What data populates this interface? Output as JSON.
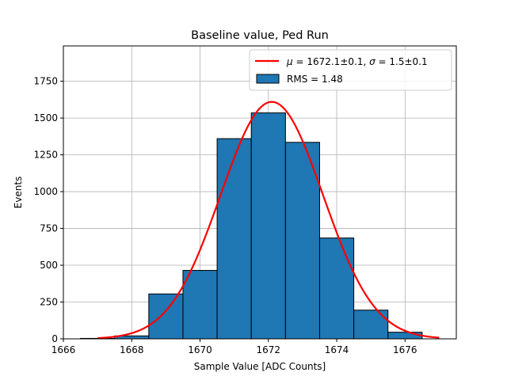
{
  "chart_data": {
    "type": "bar",
    "title": "Baseline value, Ped Run",
    "xlabel": "Sample Value [ADC Counts]",
    "ylabel": "Events",
    "xlim": [
      1666,
      1677.5
    ],
    "ylim": [
      0,
      1990
    ],
    "x_ticks": [
      1666,
      1668,
      1670,
      1672,
      1674,
      1676
    ],
    "y_ticks": [
      0,
      250,
      500,
      750,
      1000,
      1250,
      1500,
      1750
    ],
    "grid": true,
    "legend_position": "top-right",
    "histogram": {
      "name": "RMS = 1.48",
      "color": "#1f77b4",
      "edgecolor": "#000000",
      "bin_edges": [
        1666.5,
        1667.5,
        1668.5,
        1669.5,
        1670.5,
        1671.5,
        1672.5,
        1673.5,
        1674.5,
        1675.5,
        1676.5
      ],
      "counts": [
        3,
        20,
        305,
        465,
        1360,
        1535,
        1335,
        685,
        195,
        45
      ]
    },
    "fit": {
      "name_prefix": "μ",
      "name_text": " = 1672.1±0.1, ",
      "name_sigma": "σ",
      "name_sigma_text": " = 1.5±0.1",
      "color": "#ff0000",
      "mu": 1672.1,
      "sigma": 1.5,
      "amplitude": 1610,
      "x_range": [
        1667,
        1677
      ]
    }
  }
}
